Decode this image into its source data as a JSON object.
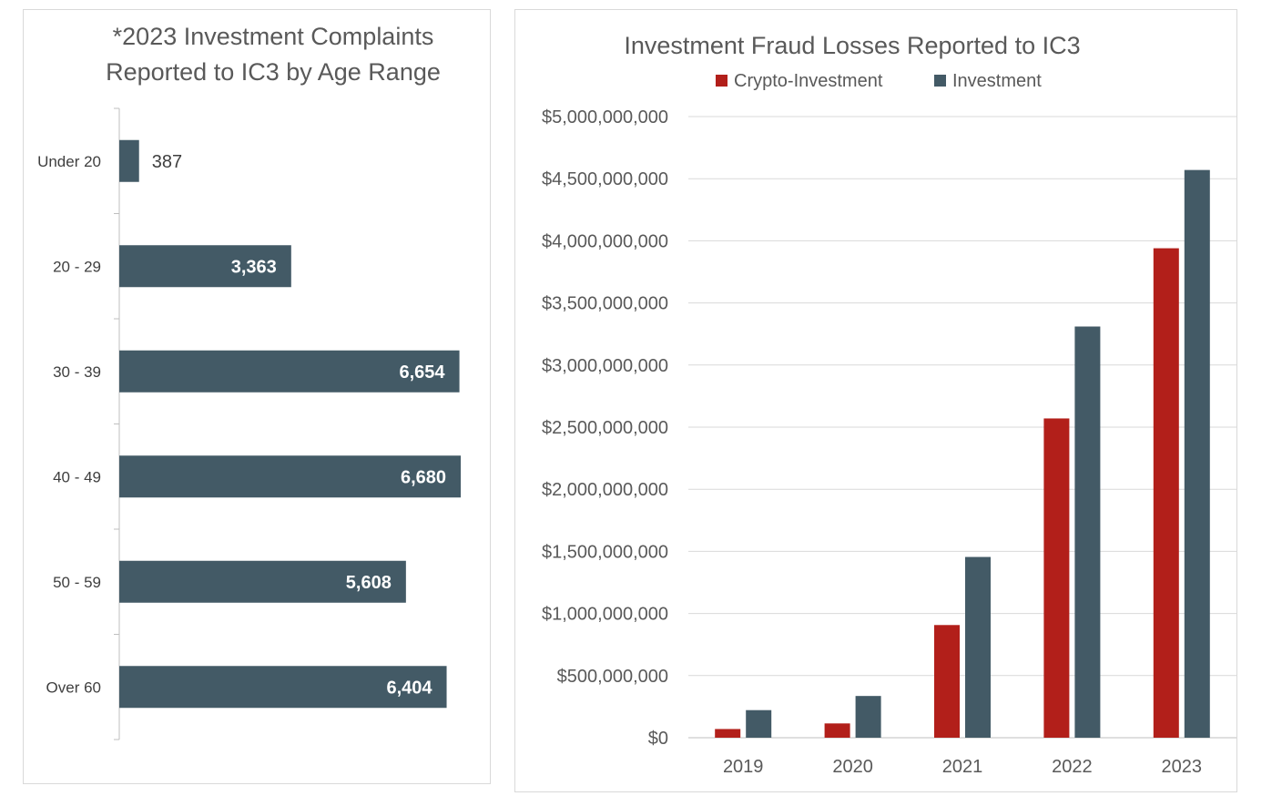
{
  "chart_data": [
    {
      "type": "bar",
      "orientation": "horizontal",
      "title_lines": [
        "*2023 Investment Complaints",
        "Reported to IC3 by Age Range"
      ],
      "categories": [
        "Under 20",
        "20 - 29",
        "30 - 39",
        "40 - 49",
        "50 - 59",
        "Over 60"
      ],
      "values": [
        387,
        3363,
        6654,
        6680,
        5608,
        6404
      ],
      "value_labels": [
        "387",
        "3,363",
        "6,654",
        "6,680",
        "5,608",
        "6,404"
      ],
      "xlim": [
        0,
        7000
      ],
      "grid": false,
      "legend": "none",
      "colors": {
        "bar": "#435a66",
        "label_inside": "#ffffff",
        "label_outside": "#3f3f3f"
      }
    },
    {
      "type": "bar",
      "title": "Investment Fraud Losses Reported to IC3",
      "categories": [
        "2019",
        "2020",
        "2021",
        "2022",
        "2023"
      ],
      "series": [
        {
          "name": "Crypto-Investment",
          "color": "#b21f1a",
          "values": [
            70000000,
            115000000,
            907000000,
            2570000000,
            3940000000
          ]
        },
        {
          "name": "Investment",
          "color": "#435a66",
          "values": [
            222000000,
            336000000,
            1455000000,
            3310000000,
            4570000000
          ]
        }
      ],
      "ylim": [
        0,
        5000000000
      ],
      "yticks": [
        0,
        500000000,
        1000000000,
        1500000000,
        2000000000,
        2500000000,
        3000000000,
        3500000000,
        4000000000,
        4500000000,
        5000000000
      ],
      "ytick_labels": [
        "$0",
        "$500,000,000",
        "$1,000,000,000",
        "$1,500,000,000",
        "$2,000,000,000",
        "$2,500,000,000",
        "$3,000,000,000",
        "$3,500,000,000",
        "$4,000,000,000",
        "$4,500,000,000",
        "$5,000,000,000"
      ],
      "grid": true,
      "legend": "top"
    }
  ]
}
